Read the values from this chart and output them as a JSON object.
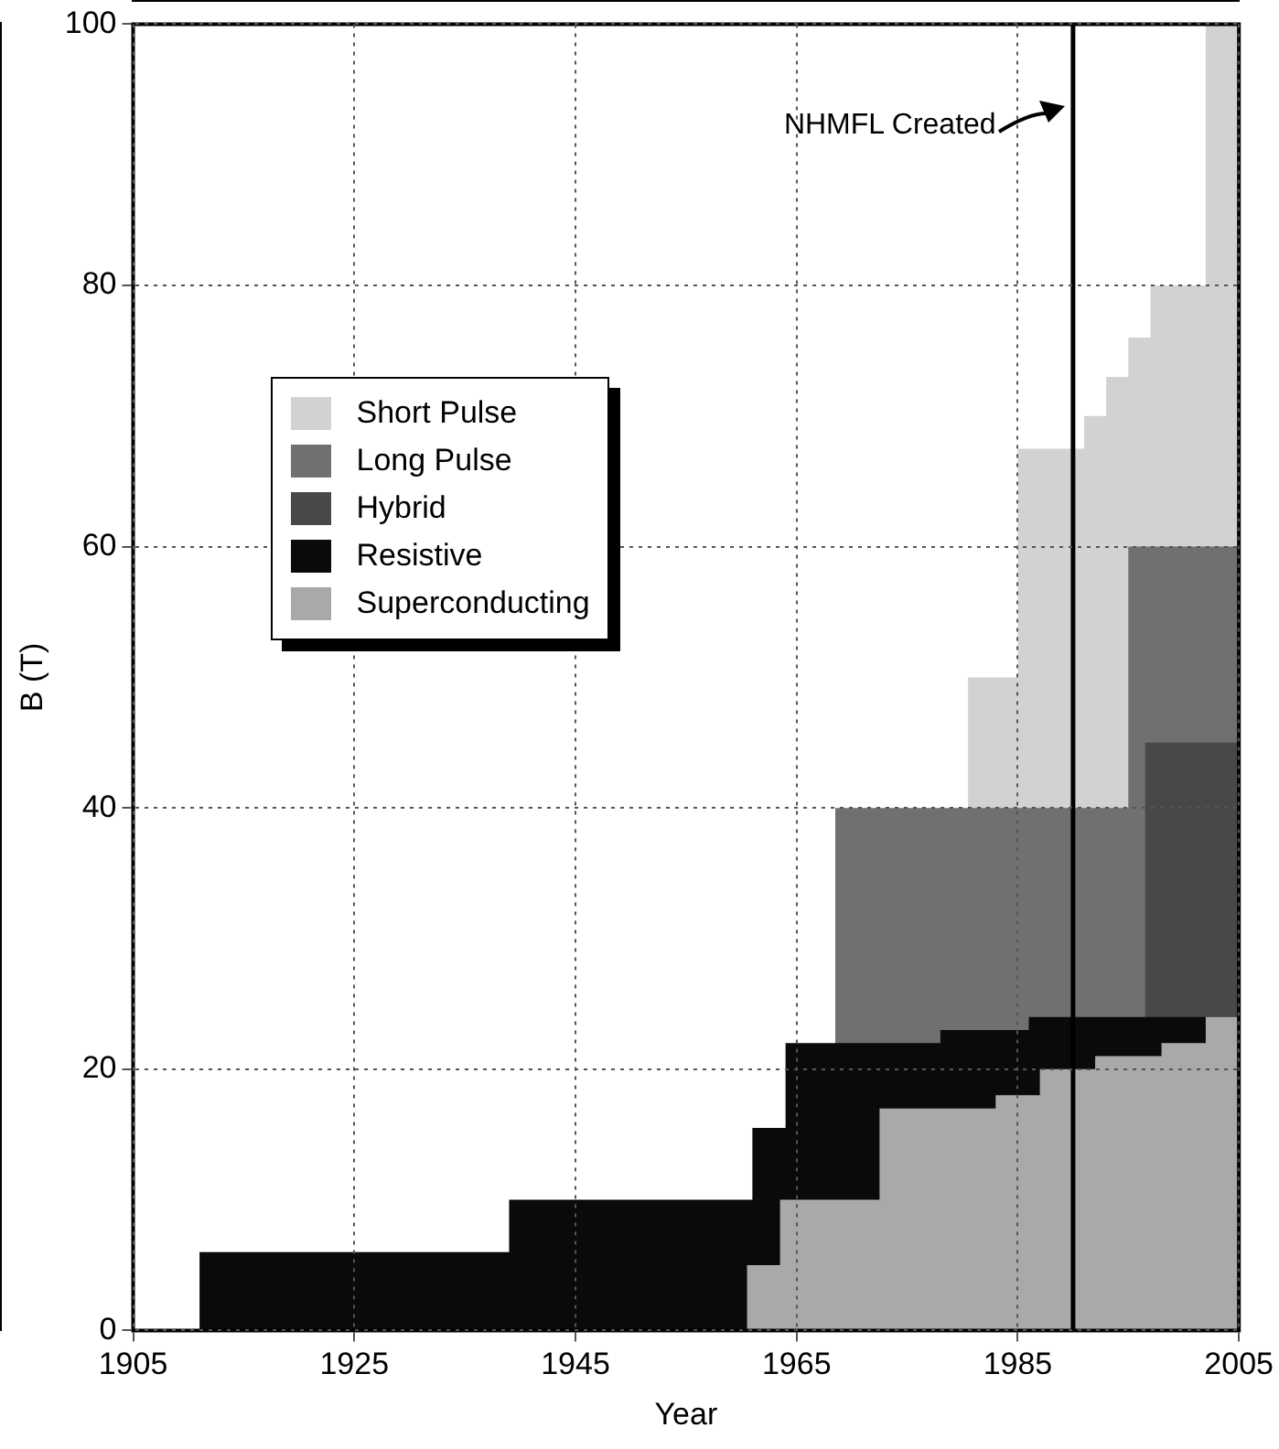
{
  "chart_data": {
    "type": "area",
    "xlabel": "Year",
    "ylabel": "B (T)",
    "xlim": [
      1905,
      2005
    ],
    "ylim": [
      0,
      100
    ],
    "xticks": [
      1905,
      1925,
      1945,
      1965,
      1985,
      2005
    ],
    "yticks": [
      0,
      20,
      40,
      60,
      80,
      100
    ],
    "grid": true,
    "legend": "left",
    "series": [
      {
        "name": "Short Pulse",
        "color": "#d2d2d2",
        "x": [
          1980.5,
          1985,
          1991,
          1993,
          1995,
          1997,
          2002,
          2005
        ],
        "values": [
          50,
          67.5,
          70,
          73,
          76,
          80,
          100,
          100
        ]
      },
      {
        "name": "Long Pulse",
        "color": "#707070",
        "x": [
          1968.5,
          1995,
          2005
        ],
        "values": [
          40,
          60,
          60
        ]
      },
      {
        "name": "Hybrid",
        "color": "#484848",
        "x": [
          1996.5,
          2005
        ],
        "values": [
          45,
          45
        ]
      },
      {
        "name": "Resistive",
        "color": "#0a0a0a",
        "x": [
          1911,
          1939,
          1961,
          1964,
          1978,
          1986,
          2005
        ],
        "values": [
          6,
          10,
          15.5,
          22,
          23,
          24,
          24
        ]
      },
      {
        "name": "Superconducting",
        "color": "#a9a9a9",
        "x": [
          1960.5,
          1963.5,
          1972.5,
          1983,
          1987,
          1992,
          1998,
          2002,
          2005
        ],
        "values": [
          5,
          10,
          17,
          18,
          20,
          21,
          22,
          24,
          25
        ]
      }
    ],
    "ref_lines": [
      {
        "axis": "x",
        "value": 1990,
        "label": "NHMFL Created",
        "color": "#000000"
      }
    ]
  }
}
